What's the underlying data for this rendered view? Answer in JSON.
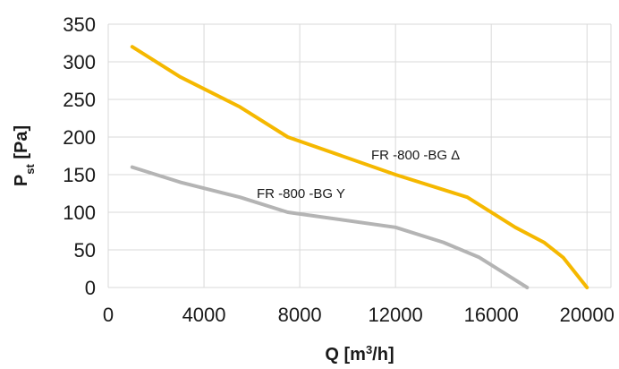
{
  "chart_data": {
    "type": "line",
    "title": "",
    "xlabel": "Q [m3/h]",
    "xlabel_parts": {
      "main": "Q [m",
      "sup": "3",
      "tail": "/h]"
    },
    "ylabel": "Pst [Pa]",
    "ylabel_parts": {
      "main": "P",
      "sub": "st",
      "tail": " [Pa]"
    },
    "xlim": [
      0,
      21000
    ],
    "ylim": [
      0,
      350
    ],
    "x_ticks": [
      0,
      4000,
      8000,
      12000,
      16000,
      20000
    ],
    "y_ticks": [
      0,
      50,
      100,
      150,
      200,
      250,
      300,
      350
    ],
    "x_tick_labels": [
      "0",
      "4000",
      "8000",
      "12000",
      "16000",
      "20000"
    ],
    "y_tick_labels": [
      "0",
      "50",
      "100",
      "150",
      "200",
      "250",
      "300",
      "350"
    ],
    "grid": true,
    "legend": "inline labels",
    "series": [
      {
        "name": "FR -800 -BG Δ",
        "color": "#F5B800",
        "x": [
          1000,
          3000,
          5500,
          7500,
          12000,
          15000,
          17000,
          18200,
          19000,
          19500,
          20000
        ],
        "y": [
          320,
          280,
          240,
          200,
          150,
          120,
          80,
          60,
          40,
          20,
          0
        ]
      },
      {
        "name": "FR -800 -BG Y",
        "color": "#B4B4B4",
        "x": [
          1000,
          3000,
          5500,
          7500,
          12000,
          14000,
          15500,
          16500,
          17500
        ],
        "y": [
          160,
          140,
          120,
          100,
          80,
          60,
          40,
          20,
          0
        ]
      }
    ]
  }
}
